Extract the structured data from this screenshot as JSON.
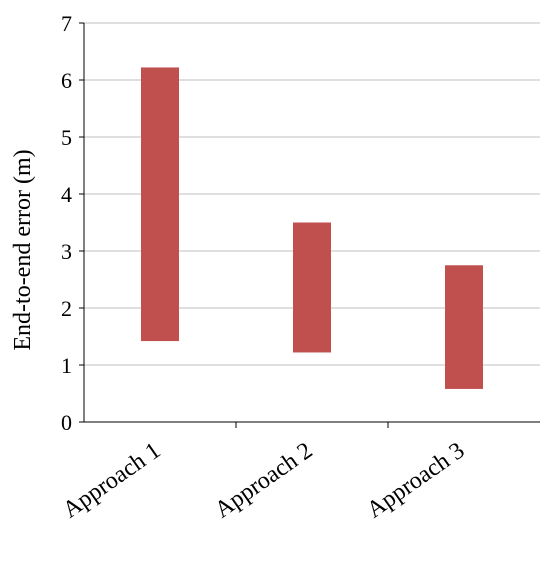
{
  "chart_data": {
    "type": "bar",
    "subtype": "floating-range",
    "categories": [
      "Approach 1",
      "Approach 2",
      "Approach 3"
    ],
    "series": [
      {
        "low": [
          1.42,
          1.22,
          0.58
        ],
        "high": [
          6.22,
          3.5,
          2.75
        ]
      }
    ],
    "ylabel": "End-to-end error (m)",
    "xlabel": "",
    "title": "",
    "ylim": [
      0,
      7
    ],
    "yticks": [
      0,
      1,
      2,
      3,
      4,
      5,
      6,
      7
    ],
    "grid": "horizontal",
    "legend": "none",
    "colors": {
      "bar": "#c0504d",
      "grid": "#bfbfbf",
      "axis": "#000000"
    }
  }
}
